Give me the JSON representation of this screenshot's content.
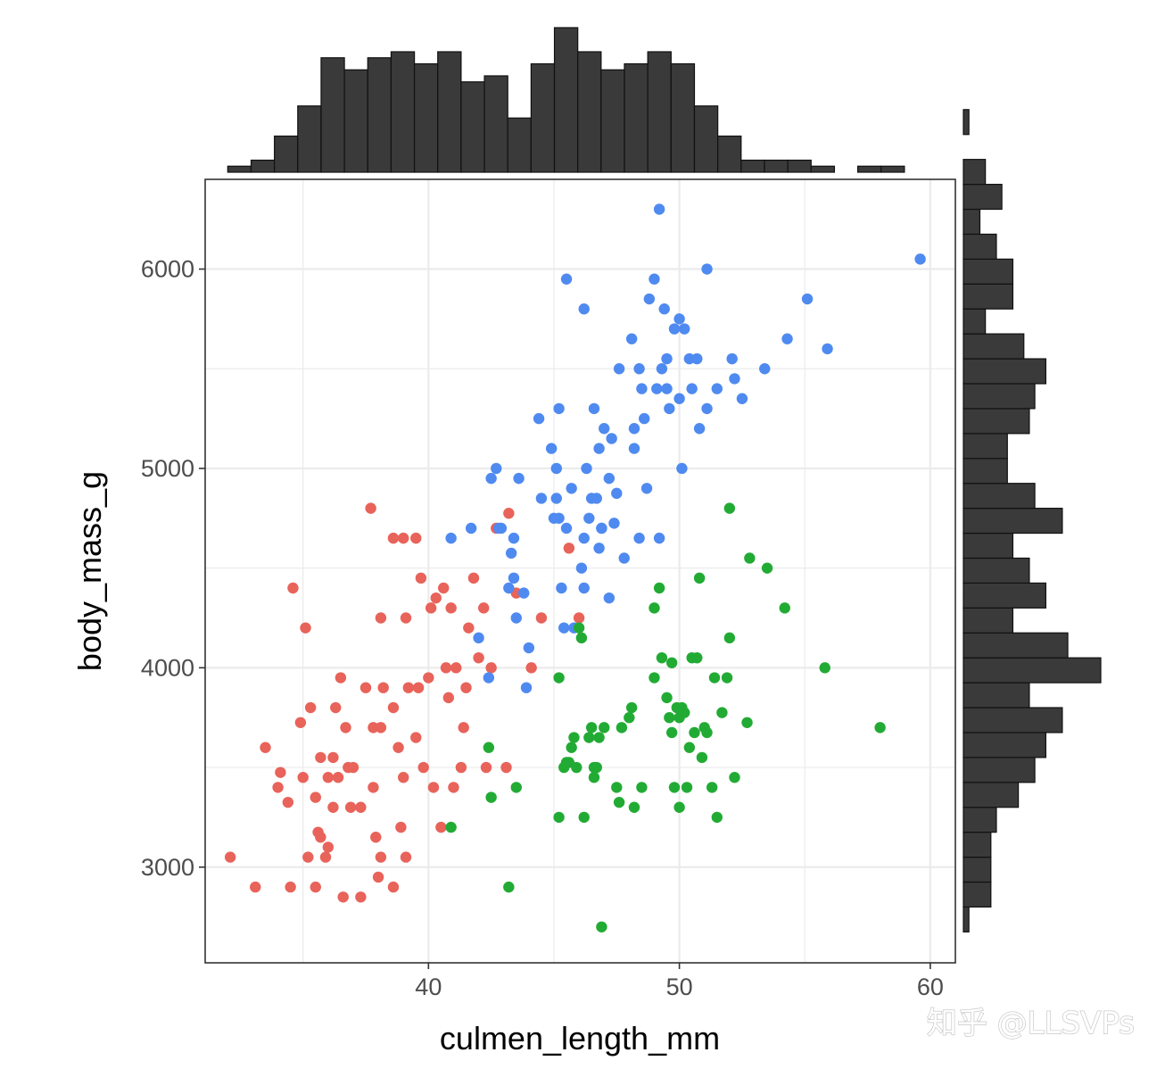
{
  "watermark": "知乎 @LLSVPs",
  "chart_data": {
    "type": "scatter",
    "title": "",
    "xlabel": "culmen_length_mm",
    "ylabel": "body_mass_g",
    "xlim": [
      31.1,
      61.0
    ],
    "ylim": [
      2520,
      6450
    ],
    "x_ticks": [
      40,
      50,
      60
    ],
    "y_ticks": [
      3000,
      4000,
      5000,
      6000
    ],
    "x_tick_labels": [
      "40",
      "50",
      "60"
    ],
    "y_tick_labels": [
      "3000",
      "4000",
      "5000",
      "6000"
    ],
    "grid": true,
    "legend": "none",
    "colors": {
      "red": "#e8635a",
      "blue": "#4f8af0",
      "green": "#22ab34",
      "histogram_bar": "#3a3a3a"
    },
    "series": [
      {
        "color": "#e8635a",
        "points": [
          [
            32.1,
            3050
          ],
          [
            33.1,
            2900
          ],
          [
            33.5,
            3600
          ],
          [
            34.0,
            3400
          ],
          [
            34.1,
            3475
          ],
          [
            34.4,
            3325
          ],
          [
            34.5,
            2900
          ],
          [
            34.6,
            4400
          ],
          [
            34.9,
            3725
          ],
          [
            35.0,
            3450
          ],
          [
            35.1,
            4200
          ],
          [
            35.2,
            3050
          ],
          [
            35.3,
            3800
          ],
          [
            35.5,
            3350
          ],
          [
            35.6,
            3175
          ],
          [
            35.7,
            3150
          ],
          [
            35.7,
            3550
          ],
          [
            35.9,
            3050
          ],
          [
            36.0,
            3450
          ],
          [
            36.0,
            3100
          ],
          [
            36.2,
            3550
          ],
          [
            36.2,
            3300
          ],
          [
            36.3,
            3800
          ],
          [
            36.4,
            3450
          ],
          [
            36.5,
            3950
          ],
          [
            36.6,
            2850
          ],
          [
            36.7,
            3700
          ],
          [
            36.8,
            3500
          ],
          [
            36.9,
            3300
          ],
          [
            37.0,
            3500
          ],
          [
            37.3,
            3300
          ],
          [
            37.5,
            3900
          ],
          [
            37.7,
            4800
          ],
          [
            37.8,
            3400
          ],
          [
            37.8,
            3700
          ],
          [
            38.1,
            4250
          ],
          [
            38.1,
            3700
          ],
          [
            38.1,
            3050
          ],
          [
            38.2,
            3900
          ],
          [
            38.6,
            4650
          ],
          [
            38.6,
            3800
          ],
          [
            38.8,
            3600
          ],
          [
            38.9,
            3200
          ],
          [
            39.0,
            4650
          ],
          [
            39.0,
            3450
          ],
          [
            39.1,
            3050
          ],
          [
            39.1,
            4250
          ],
          [
            39.2,
            3900
          ],
          [
            39.5,
            4650
          ],
          [
            39.5,
            3650
          ],
          [
            39.6,
            3900
          ],
          [
            39.7,
            4450
          ],
          [
            39.8,
            3500
          ],
          [
            40.0,
            3950
          ],
          [
            40.1,
            4300
          ],
          [
            40.2,
            3400
          ],
          [
            40.3,
            4350
          ],
          [
            40.5,
            3200
          ],
          [
            40.6,
            4400
          ],
          [
            40.7,
            4000
          ],
          [
            40.8,
            3850
          ],
          [
            40.9,
            4300
          ],
          [
            41.0,
            3400
          ],
          [
            41.1,
            4000
          ],
          [
            41.3,
            3500
          ],
          [
            41.4,
            3700
          ],
          [
            41.5,
            3900
          ],
          [
            41.6,
            4200
          ],
          [
            41.8,
            4450
          ],
          [
            42.0,
            4050
          ],
          [
            42.2,
            4300
          ],
          [
            42.3,
            3500
          ],
          [
            42.5,
            4000
          ],
          [
            42.7,
            4700
          ],
          [
            43.1,
            3500
          ],
          [
            43.2,
            4775
          ],
          [
            43.5,
            4375
          ],
          [
            44.1,
            4000
          ],
          [
            44.5,
            4250
          ],
          [
            45.6,
            4600
          ],
          [
            46.0,
            4250
          ],
          [
            37.9,
            3150
          ],
          [
            37.3,
            2850
          ],
          [
            38.0,
            2950
          ],
          [
            38.6,
            2900
          ],
          [
            35.5,
            2900
          ]
        ]
      },
      {
        "color": "#4f8af0",
        "points": [
          [
            40.9,
            4650
          ],
          [
            41.7,
            4700
          ],
          [
            42.0,
            4150
          ],
          [
            42.4,
            3950
          ],
          [
            42.5,
            4950
          ],
          [
            42.7,
            5000
          ],
          [
            42.8,
            4700
          ],
          [
            42.9,
            4700
          ],
          [
            43.2,
            4400
          ],
          [
            43.3,
            4575
          ],
          [
            43.4,
            4650
          ],
          [
            43.5,
            4250
          ],
          [
            43.6,
            4950
          ],
          [
            43.8,
            4375
          ],
          [
            43.9,
            3900
          ],
          [
            44.0,
            4100
          ],
          [
            44.4,
            5250
          ],
          [
            44.5,
            4850
          ],
          [
            44.9,
            5100
          ],
          [
            45.0,
            4750
          ],
          [
            45.1,
            5000
          ],
          [
            45.2,
            4750
          ],
          [
            45.2,
            5300
          ],
          [
            45.3,
            4400
          ],
          [
            45.4,
            4200
          ],
          [
            45.5,
            4700
          ],
          [
            45.5,
            5950
          ],
          [
            45.7,
            4900
          ],
          [
            45.8,
            4200
          ],
          [
            46.1,
            4500
          ],
          [
            46.2,
            4650
          ],
          [
            46.2,
            4400
          ],
          [
            46.3,
            5000
          ],
          [
            46.4,
            4750
          ],
          [
            46.5,
            4850
          ],
          [
            46.6,
            5300
          ],
          [
            46.7,
            4850
          ],
          [
            46.8,
            5100
          ],
          [
            46.9,
            4700
          ],
          [
            47.0,
            5200
          ],
          [
            47.2,
            4950
          ],
          [
            47.3,
            5150
          ],
          [
            47.4,
            4725
          ],
          [
            47.5,
            4875
          ],
          [
            47.6,
            5500
          ],
          [
            47.8,
            4550
          ],
          [
            48.1,
            5650
          ],
          [
            48.2,
            5100
          ],
          [
            48.4,
            4650
          ],
          [
            48.5,
            5400
          ],
          [
            48.6,
            5250
          ],
          [
            48.7,
            4900
          ],
          [
            48.8,
            5850
          ],
          [
            49.0,
            5950
          ],
          [
            49.1,
            5400
          ],
          [
            49.2,
            4650
          ],
          [
            49.3,
            5500
          ],
          [
            49.4,
            5800
          ],
          [
            49.5,
            5550
          ],
          [
            49.6,
            5300
          ],
          [
            49.8,
            5700
          ],
          [
            50.0,
            5350
          ],
          [
            50.1,
            5000
          ],
          [
            50.2,
            5700
          ],
          [
            50.4,
            5550
          ],
          [
            50.5,
            5400
          ],
          [
            50.7,
            5550
          ],
          [
            50.8,
            5200
          ],
          [
            51.1,
            5300
          ],
          [
            51.5,
            5400
          ],
          [
            52.1,
            5550
          ],
          [
            52.2,
            5450
          ],
          [
            52.5,
            5350
          ],
          [
            53.4,
            5500
          ],
          [
            54.3,
            5650
          ],
          [
            55.1,
            5850
          ],
          [
            55.9,
            5600
          ],
          [
            59.6,
            6050
          ],
          [
            49.2,
            6300
          ],
          [
            46.2,
            5800
          ],
          [
            51.1,
            6000
          ],
          [
            48.4,
            5500
          ],
          [
            47.2,
            4350
          ],
          [
            46.8,
            4600
          ],
          [
            45.1,
            4850
          ],
          [
            43.4,
            4450
          ],
          [
            46.9,
            4700
          ],
          [
            50.0,
            5750
          ],
          [
            48.2,
            5200
          ],
          [
            49.5,
            5400
          ]
        ]
      },
      {
        "color": "#22ab34",
        "points": [
          [
            40.9,
            3200
          ],
          [
            42.4,
            3600
          ],
          [
            42.5,
            3350
          ],
          [
            43.2,
            2900
          ],
          [
            43.5,
            3400
          ],
          [
            45.2,
            3250
          ],
          [
            45.2,
            3950
          ],
          [
            45.4,
            3500
          ],
          [
            45.5,
            3525
          ],
          [
            45.6,
            3525
          ],
          [
            45.7,
            3600
          ],
          [
            45.8,
            3650
          ],
          [
            45.9,
            3500
          ],
          [
            46.0,
            4200
          ],
          [
            46.1,
            4150
          ],
          [
            46.2,
            3250
          ],
          [
            46.4,
            3650
          ],
          [
            46.5,
            3700
          ],
          [
            46.6,
            3450
          ],
          [
            46.7,
            3500
          ],
          [
            46.8,
            3650
          ],
          [
            46.9,
            2700
          ],
          [
            47.0,
            3700
          ],
          [
            47.5,
            3400
          ],
          [
            47.6,
            3325
          ],
          [
            47.7,
            3700
          ],
          [
            48.1,
            3800
          ],
          [
            48.2,
            3300
          ],
          [
            48.5,
            3400
          ],
          [
            49.0,
            4300
          ],
          [
            49.2,
            4400
          ],
          [
            49.3,
            4050
          ],
          [
            49.5,
            3850
          ],
          [
            49.6,
            3750
          ],
          [
            49.7,
            3675
          ],
          [
            49.8,
            3400
          ],
          [
            49.9,
            3800
          ],
          [
            50.0,
            3750
          ],
          [
            50.1,
            3800
          ],
          [
            50.2,
            3775
          ],
          [
            50.3,
            3400
          ],
          [
            50.4,
            3600
          ],
          [
            50.5,
            4050
          ],
          [
            50.6,
            3675
          ],
          [
            50.7,
            4050
          ],
          [
            50.8,
            4450
          ],
          [
            50.9,
            3550
          ],
          [
            51.0,
            3700
          ],
          [
            51.1,
            3675
          ],
          [
            51.3,
            3400
          ],
          [
            51.4,
            3950
          ],
          [
            51.5,
            3250
          ],
          [
            51.7,
            3775
          ],
          [
            51.9,
            3950
          ],
          [
            52.0,
            4800
          ],
          [
            52.2,
            3450
          ],
          [
            52.7,
            3725
          ],
          [
            52.8,
            4550
          ],
          [
            53.5,
            4500
          ],
          [
            54.2,
            4300
          ],
          [
            55.8,
            4000
          ],
          [
            58.0,
            3700
          ],
          [
            50.0,
            3300
          ],
          [
            49.0,
            3950
          ],
          [
            48.0,
            3750
          ],
          [
            46.6,
            3500
          ],
          [
            49.7,
            4025
          ],
          [
            52.0,
            4150
          ]
        ]
      }
    ],
    "marginal_x_histogram": {
      "bin_width": 0.93,
      "bin_start": 32.0,
      "counts": [
        1,
        2,
        6,
        11,
        19,
        17,
        19,
        20,
        18,
        20,
        15,
        16,
        9,
        18,
        24,
        20,
        17,
        18,
        20,
        18,
        11,
        6,
        2,
        2,
        2,
        1,
        0,
        1,
        1
      ]
    },
    "marginal_y_histogram": {
      "bin_width": 125,
      "bin_start": 2675,
      "counts": [
        1,
        5,
        5,
        5,
        6,
        10,
        13,
        15,
        18,
        12,
        25,
        19,
        9,
        15,
        12,
        9,
        18,
        13,
        8,
        8,
        12,
        13,
        15,
        11,
        4,
        9,
        9,
        6,
        3,
        7,
        4,
        0,
        1
      ]
    }
  }
}
